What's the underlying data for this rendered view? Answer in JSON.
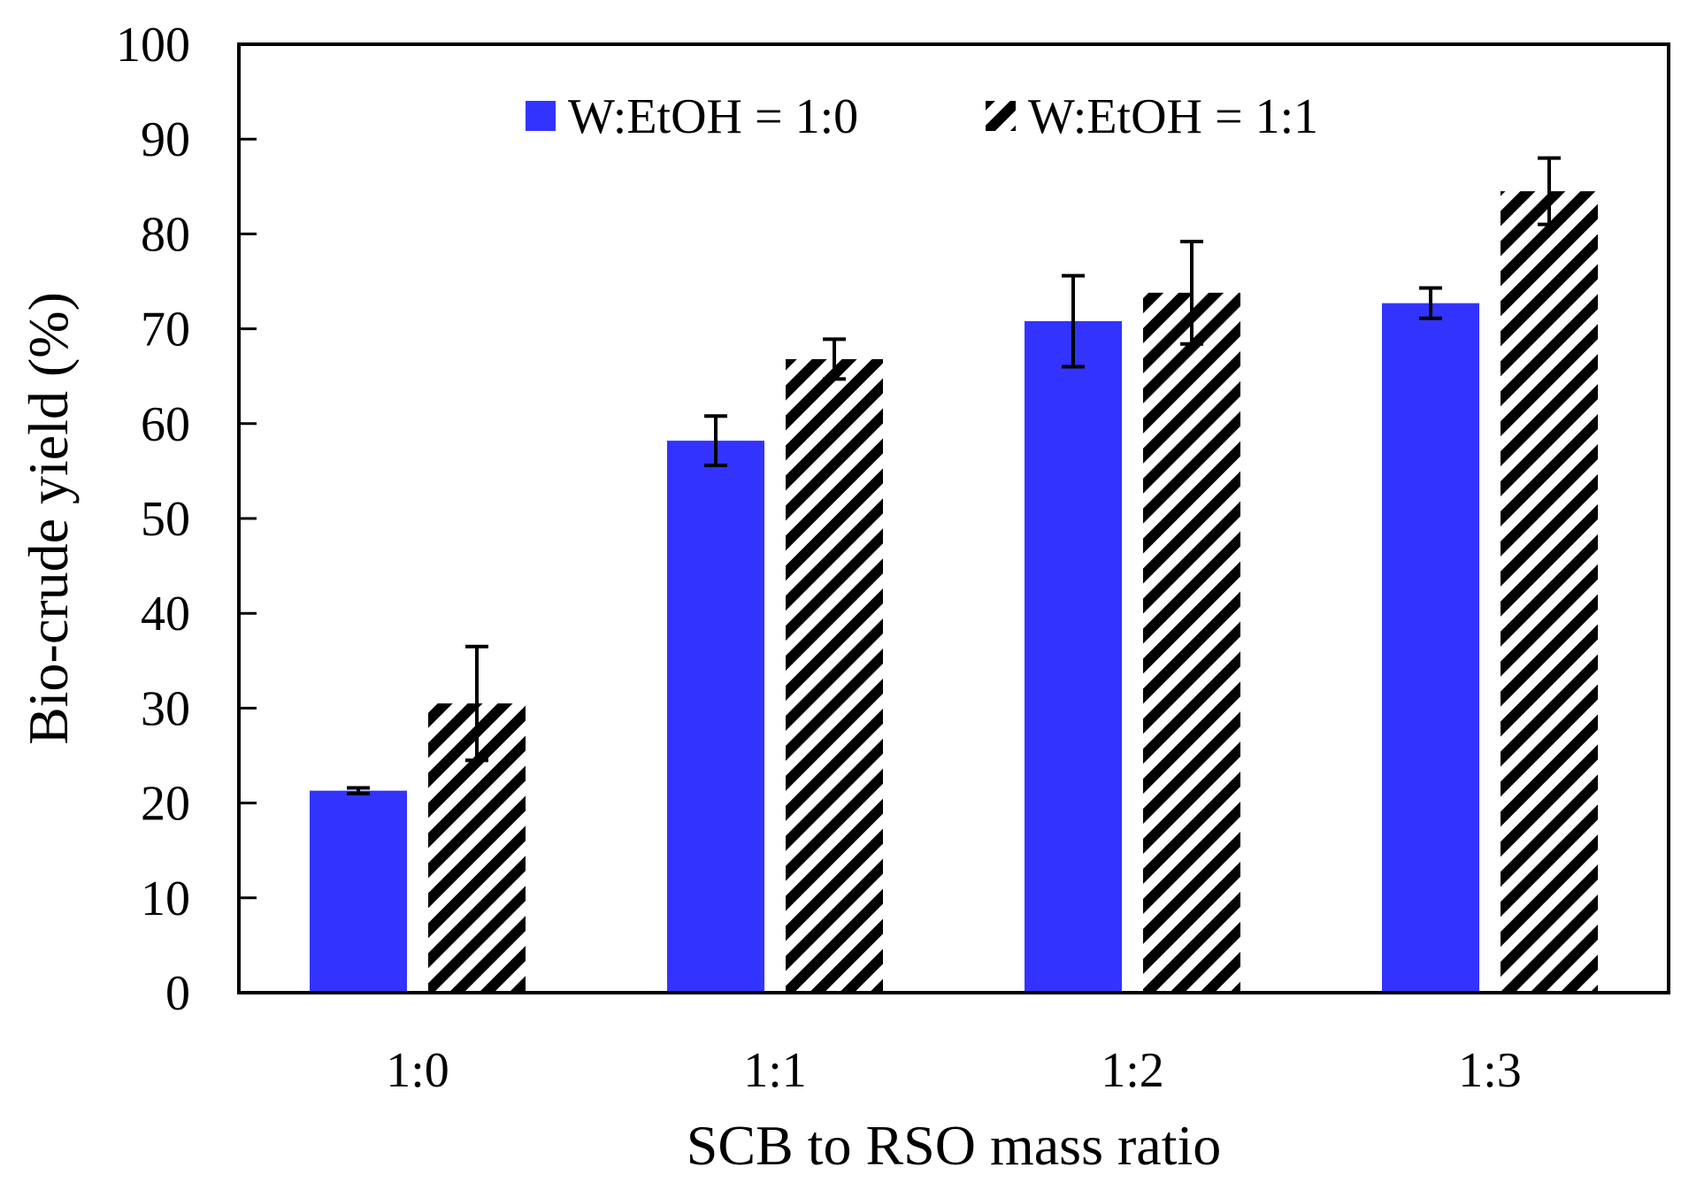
{
  "chart_data": {
    "type": "bar",
    "title": "",
    "xlabel": "SCB to RSO mass ratio",
    "ylabel": "Bio-crude yield (%)",
    "ylim": [
      0,
      100
    ],
    "yticks": [
      "0",
      "10",
      "20",
      "30",
      "40",
      "50",
      "60",
      "70",
      "80",
      "90",
      "100"
    ],
    "categories": [
      "1:0",
      "1:1",
      "1:2",
      "1:3"
    ],
    "legend_position": "top",
    "series": [
      {
        "name": "W:EtOH = 1:0",
        "style": "solid",
        "color": "#3333ff",
        "values": [
          21.3,
          58.2,
          70.8,
          72.7
        ],
        "errors": [
          0.3,
          2.6,
          4.8,
          1.6
        ]
      },
      {
        "name": "W:EtOH = 1:1",
        "style": "diagonal-hatch",
        "color": "#000000",
        "values": [
          30.5,
          66.8,
          73.8,
          84.5
        ],
        "errors": [
          6.0,
          2.1,
          5.4,
          3.5
        ]
      }
    ]
  }
}
